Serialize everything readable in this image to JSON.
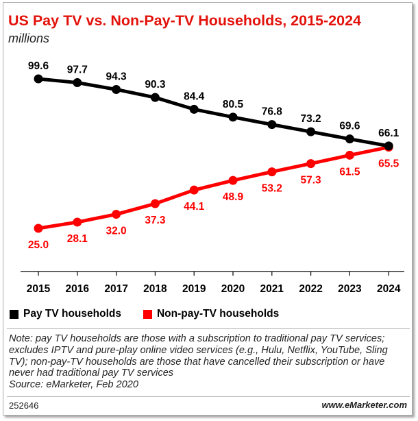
{
  "header": {
    "title": "US Pay TV vs. Non-Pay-TV Households, 2015-2024",
    "subtitle": "millions"
  },
  "chart_data": {
    "type": "line",
    "title": "US Pay TV vs. Non-Pay-TV Households, 2015-2024",
    "subtitle": "millions",
    "xlabel": "",
    "ylabel": "",
    "ylim": [
      20,
      105
    ],
    "grid": false,
    "legend_position": "bottom-left",
    "categories": [
      "2015",
      "2016",
      "2017",
      "2018",
      "2019",
      "2020",
      "2021",
      "2022",
      "2023",
      "2024"
    ],
    "series": [
      {
        "name": "Pay TV households",
        "color": "#000000",
        "label_position": "above",
        "values": [
          99.6,
          97.7,
          94.3,
          90.3,
          84.4,
          80.5,
          76.8,
          73.2,
          69.6,
          66.1
        ],
        "labels": [
          "99.6",
          "97.7",
          "94.3",
          "90.3",
          "84.4",
          "80.5",
          "76.8",
          "73.2",
          "69.6",
          "66.1"
        ]
      },
      {
        "name": "Non-pay-TV households",
        "color": "#ff0000",
        "label_position": "below",
        "values": [
          25.0,
          28.1,
          32.0,
          37.3,
          44.1,
          48.9,
          53.2,
          57.3,
          61.5,
          65.5
        ],
        "labels": [
          "25.0",
          "28.1",
          "32.0",
          "37.3",
          "44.1",
          "48.9",
          "53.2",
          "57.3",
          "61.5",
          "65.5"
        ]
      }
    ]
  },
  "note": "Note: pay TV households are those with a subscription to traditional pay TV services; excludes IPTV and pure-play online video services (e.g., Hulu, Netflix, YouTube, Sling TV); non-pay-TV households are those that have cancelled their subscription or have never had traditional pay TV services",
  "source": "Source: eMarketer, Feb 2020",
  "footer": {
    "chart_id": "252646",
    "brand": "www.eMarketer.com"
  },
  "colors": {
    "title_red": "#e3120b",
    "series_black": "#000000",
    "series_red": "#ff0000"
  }
}
